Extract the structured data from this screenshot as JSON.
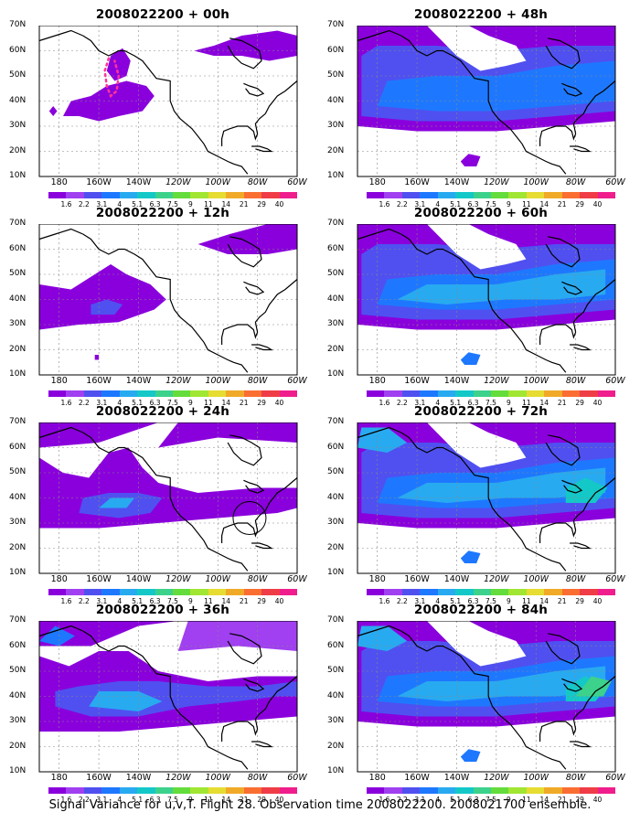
{
  "caption": "Signal Variance for u,v,T. Flight 28. Observation time 2008022200. 2008021700 ensemble.",
  "lat_labels": [
    "70N",
    "60N",
    "50N",
    "40N",
    "30N",
    "20N",
    "10N"
  ],
  "lon_labels": [
    "180",
    "160W",
    "140W",
    "120W",
    "100W",
    "80W",
    "60W"
  ],
  "colorbar": {
    "labels": [
      "1.6",
      "2.2",
      "3.1",
      "4",
      "5.1",
      "6.3",
      "7.5",
      "9",
      "11",
      "14",
      "21",
      "29",
      "40"
    ],
    "colors": [
      "#8a00dc",
      "#a040f0",
      "#5050f0",
      "#1e78ff",
      "#28aaf0",
      "#14c8c8",
      "#3cd28c",
      "#64dc3c",
      "#a0e632",
      "#e6dc32",
      "#f0aa28",
      "#fa6e32",
      "#f03c46",
      "#f01e8c"
    ]
  },
  "panels": [
    {
      "title": "2008022200 + 00h",
      "level": 0
    },
    {
      "title": "2008022200 + 48h",
      "level": 4
    },
    {
      "title": "2008022200 + 12h",
      "level": 1
    },
    {
      "title": "2008022200 + 60h",
      "level": 5
    },
    {
      "title": "2008022200 + 24h",
      "level": 2
    },
    {
      "title": "2008022200 + 72h",
      "level": 6
    },
    {
      "title": "2008022200 + 36h",
      "level": 3
    },
    {
      "title": "2008022200 + 84h",
      "level": 7
    }
  ]
}
